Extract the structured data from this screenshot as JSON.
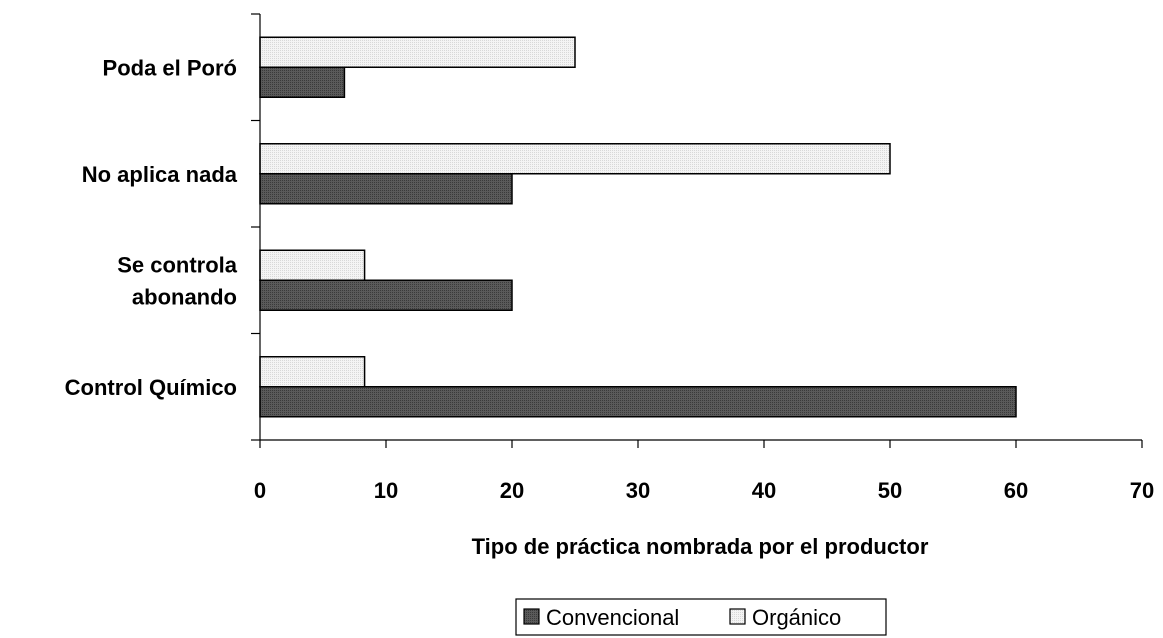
{
  "chart_data": {
    "type": "bar",
    "orientation": "horizontal",
    "categories": [
      "Control Químico",
      "Se controla\nabonando",
      "No aplica nada",
      "Poda el Poró"
    ],
    "series": [
      {
        "name": "Convencional",
        "values": [
          60,
          20,
          20,
          6.7
        ],
        "color": "#555555"
      },
      {
        "name": "Orgánico",
        "values": [
          8.3,
          8.3,
          50,
          25
        ],
        "color": "#f2f2f2"
      }
    ],
    "xlabel": "Tipo de práctica nombrada por el productor",
    "ylabel": "",
    "xlim": [
      0,
      70
    ],
    "xticks": [
      0,
      10,
      20,
      30,
      40,
      50,
      60,
      70
    ],
    "grid": false,
    "legend_position": "bottom"
  }
}
